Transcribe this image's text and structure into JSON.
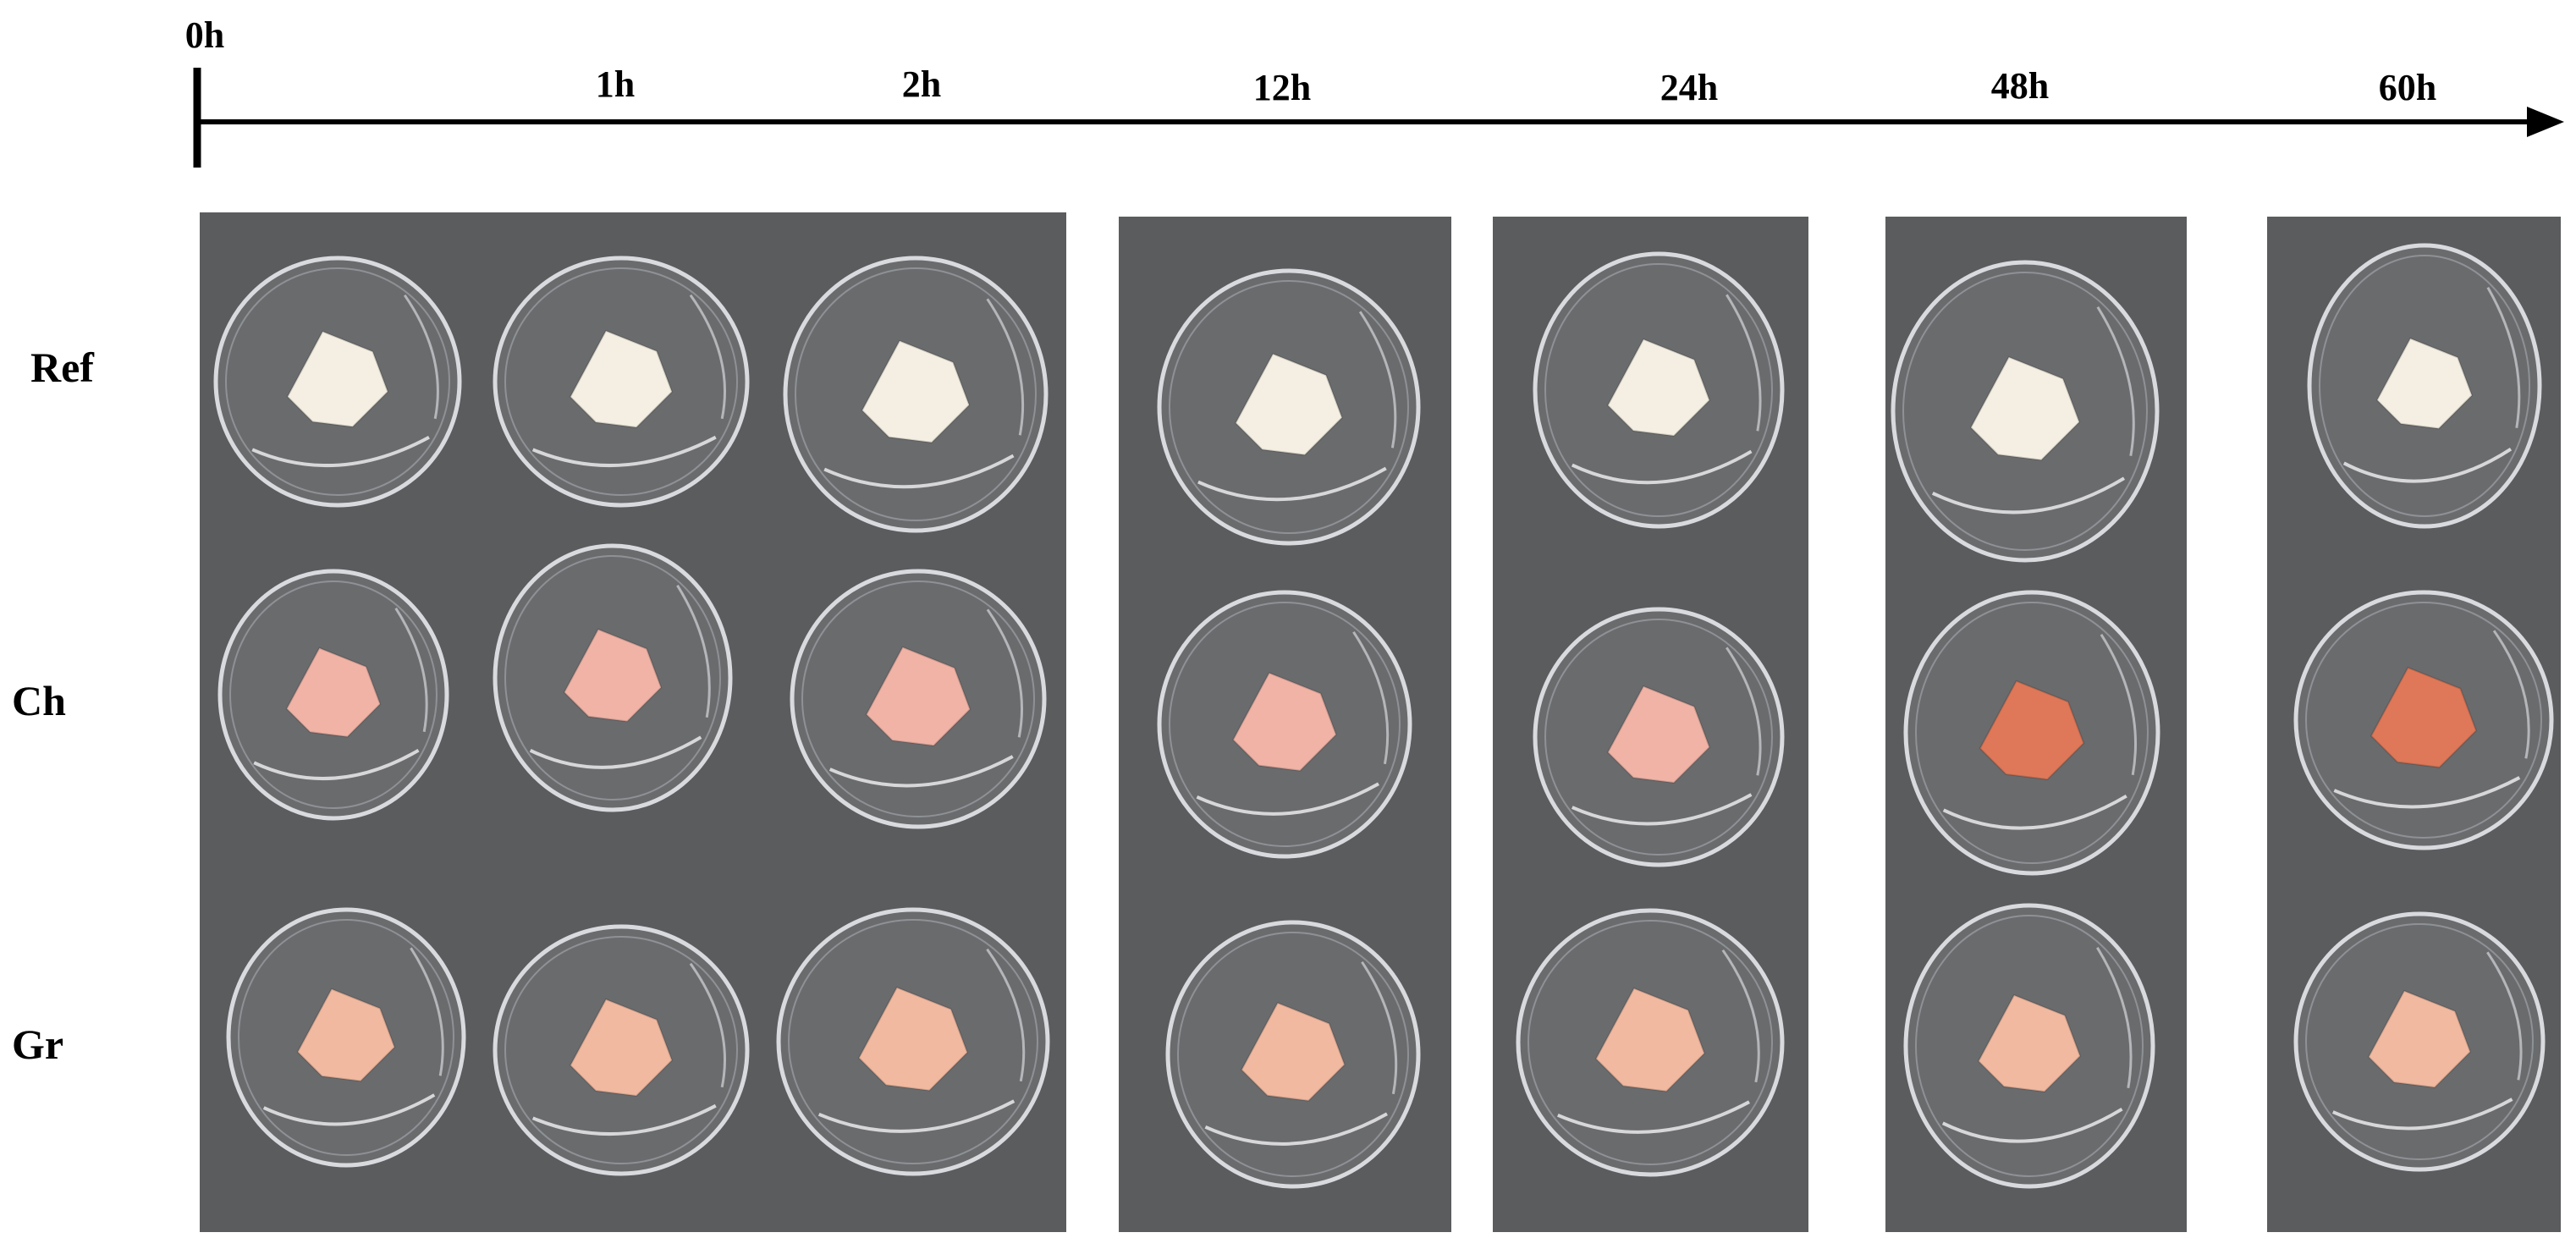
{
  "timeline": {
    "labels": [
      "0h",
      "1h",
      "2h",
      "12h",
      "24h",
      "48h",
      "60h"
    ]
  },
  "rows": {
    "labels": [
      "Ref",
      "Ch",
      "Gr"
    ]
  },
  "colors": {
    "background": "#5b5c5e",
    "ref_sample": "#f4efe2",
    "ch_sample_early": "#f0b3a6",
    "ch_sample_late": "#df7858",
    "gr_sample": "#f1b9a0"
  },
  "icons": {
    "axis": "arrow-right-icon",
    "dish": "petri-dish-icon"
  }
}
